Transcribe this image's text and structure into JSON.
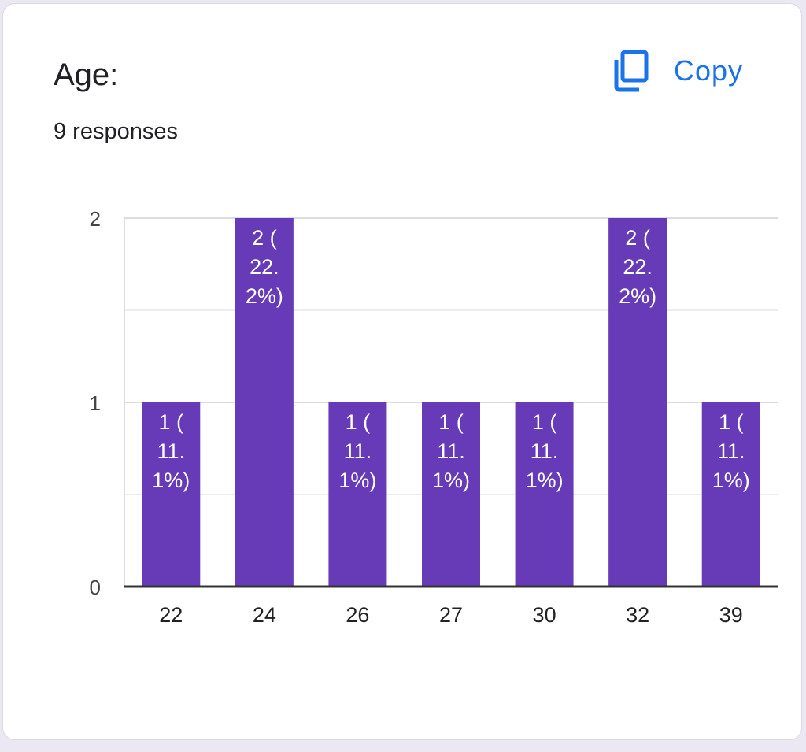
{
  "question": {
    "title": "Age:",
    "responses": "9 responses"
  },
  "toolbar": {
    "copy_label": "Copy",
    "copy_icon": "copy-icon"
  },
  "colors": {
    "bar": "#673ab7",
    "accent": "#1a73e8",
    "text": "#202124",
    "grid": "#e6e6e6",
    "baseline": "#333333"
  },
  "chart_data": {
    "type": "bar",
    "categories": [
      "22",
      "24",
      "26",
      "27",
      "30",
      "32",
      "39"
    ],
    "values": [
      1,
      2,
      1,
      1,
      1,
      2,
      1
    ],
    "data_labels": [
      [
        "1 (",
        "11.",
        "1%)"
      ],
      [
        "2 (",
        "22.",
        "2%)"
      ],
      [
        "1 (",
        "11.",
        "1%)"
      ],
      [
        "1 (",
        "11.",
        "1%)"
      ],
      [
        "1 (",
        "11.",
        "1%)"
      ],
      [
        "2 (",
        "22.",
        "2%)"
      ],
      [
        "1 (",
        "11.",
        "1%)"
      ]
    ],
    "y_ticks": [
      "0",
      "1",
      "2"
    ],
    "ylim": [
      0,
      2
    ],
    "grid": true,
    "title": "",
    "xlabel": "",
    "ylabel": ""
  }
}
